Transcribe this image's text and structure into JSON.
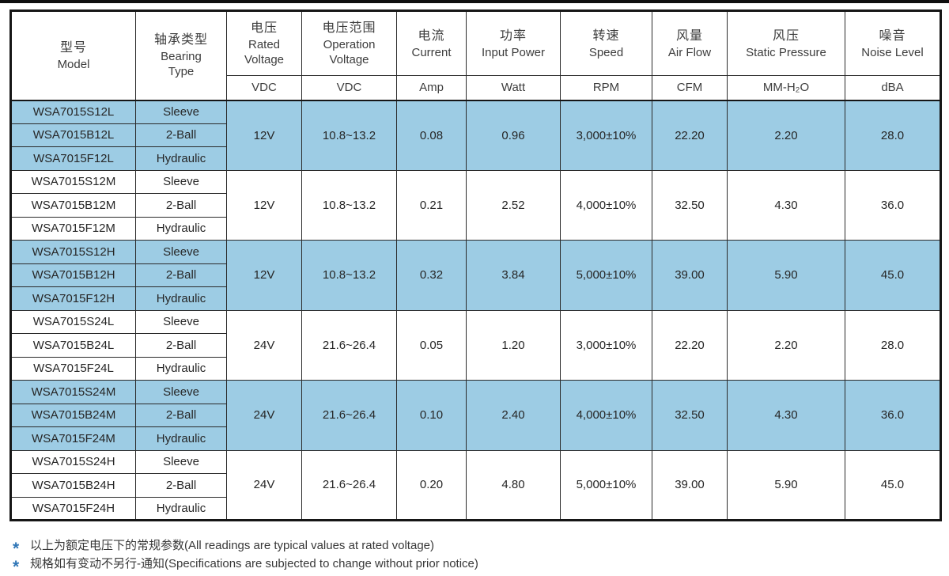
{
  "colors": {
    "highlight_row": "#9dcce4",
    "table_border": "#2a2a2a",
    "note_star": "#2e75b6",
    "top_rule": "#0f0f0f"
  },
  "table": {
    "columns": [
      {
        "id": "model",
        "zh": "型号",
        "en": "Model",
        "unit": null
      },
      {
        "id": "bearing",
        "zh": "轴承类型",
        "en": "Bearing\nType",
        "unit": null
      },
      {
        "id": "rated_voltage",
        "zh": "电压",
        "en": "Rated\nVoltage",
        "unit": "VDC"
      },
      {
        "id": "operation_voltage",
        "zh": "电压范围",
        "en": "Operation\nVoltage",
        "unit": "VDC"
      },
      {
        "id": "current",
        "zh": "电流",
        "en": "Current",
        "unit": "Amp"
      },
      {
        "id": "input_power",
        "zh": "功率",
        "en": "Input Power",
        "unit": "Watt"
      },
      {
        "id": "speed",
        "zh": "转速",
        "en": "Speed",
        "unit": "RPM"
      },
      {
        "id": "air_flow",
        "zh": "风量",
        "en": "Air Flow",
        "unit": "CFM"
      },
      {
        "id": "static_pressure",
        "zh": "风压",
        "en": "Static Pressure",
        "unit": "MM-H₂O"
      },
      {
        "id": "noise",
        "zh": "噪音",
        "en": "Noise Level",
        "unit": "dBA"
      }
    ],
    "groups": [
      {
        "highlight": true,
        "rows": [
          {
            "model": "WSA7015S12L",
            "bearing": "Sleeve"
          },
          {
            "model": "WSA7015B12L",
            "bearing": "2-Ball"
          },
          {
            "model": "WSA7015F12L",
            "bearing": "Hydraulic"
          }
        ],
        "shared": {
          "rated_voltage": "12V",
          "operation_voltage": "10.8~13.2",
          "current": "0.08",
          "input_power": "0.96",
          "speed": "3,000±10%",
          "air_flow": "22.20",
          "static_pressure": "2.20",
          "noise": "28.0"
        }
      },
      {
        "highlight": false,
        "rows": [
          {
            "model": "WSA7015S12M",
            "bearing": "Sleeve"
          },
          {
            "model": "WSA7015B12M",
            "bearing": "2-Ball"
          },
          {
            "model": "WSA7015F12M",
            "bearing": "Hydraulic"
          }
        ],
        "shared": {
          "rated_voltage": "12V",
          "operation_voltage": "10.8~13.2",
          "current": "0.21",
          "input_power": "2.52",
          "speed": "4,000±10%",
          "air_flow": "32.50",
          "static_pressure": "4.30",
          "noise": "36.0"
        }
      },
      {
        "highlight": true,
        "rows": [
          {
            "model": "WSA7015S12H",
            "bearing": "Sleeve"
          },
          {
            "model": "WSA7015B12H",
            "bearing": "2-Ball"
          },
          {
            "model": "WSA7015F12H",
            "bearing": "Hydraulic"
          }
        ],
        "shared": {
          "rated_voltage": "12V",
          "operation_voltage": "10.8~13.2",
          "current": "0.32",
          "input_power": "3.84",
          "speed": "5,000±10%",
          "air_flow": "39.00",
          "static_pressure": "5.90",
          "noise": "45.0"
        }
      },
      {
        "highlight": false,
        "rows": [
          {
            "model": "WSA7015S24L",
            "bearing": "Sleeve"
          },
          {
            "model": "WSA7015B24L",
            "bearing": "2-Ball"
          },
          {
            "model": "WSA7015F24L",
            "bearing": "Hydraulic"
          }
        ],
        "shared": {
          "rated_voltage": "24V",
          "operation_voltage": "21.6~26.4",
          "current": "0.05",
          "input_power": "1.20",
          "speed": "3,000±10%",
          "air_flow": "22.20",
          "static_pressure": "2.20",
          "noise": "28.0"
        }
      },
      {
        "highlight": true,
        "rows": [
          {
            "model": "WSA7015S24M",
            "bearing": "Sleeve"
          },
          {
            "model": "WSA7015B24M",
            "bearing": "2-Ball"
          },
          {
            "model": "WSA7015F24M",
            "bearing": "Hydraulic"
          }
        ],
        "shared": {
          "rated_voltage": "24V",
          "operation_voltage": "21.6~26.4",
          "current": "0.10",
          "input_power": "2.40",
          "speed": "4,000±10%",
          "air_flow": "32.50",
          "static_pressure": "4.30",
          "noise": "36.0"
        }
      },
      {
        "highlight": false,
        "rows": [
          {
            "model": "WSA7015S24H",
            "bearing": "Sleeve"
          },
          {
            "model": "WSA7015B24H",
            "bearing": "2-Ball"
          },
          {
            "model": "WSA7015F24H",
            "bearing": "Hydraulic"
          }
        ],
        "shared": {
          "rated_voltage": "24V",
          "operation_voltage": "21.6~26.4",
          "current": "0.20",
          "input_power": "4.80",
          "speed": "5,000±10%",
          "air_flow": "39.00",
          "static_pressure": "5.90",
          "noise": "45.0"
        }
      }
    ]
  },
  "notes": [
    {
      "marker": "*",
      "text": "以上为额定电压下的常规参数(All readings are typical values at rated voltage)"
    },
    {
      "marker": "*",
      "text": "规格如有变动不另行-通知(Specifications are subjected to change without prior notice)"
    }
  ]
}
